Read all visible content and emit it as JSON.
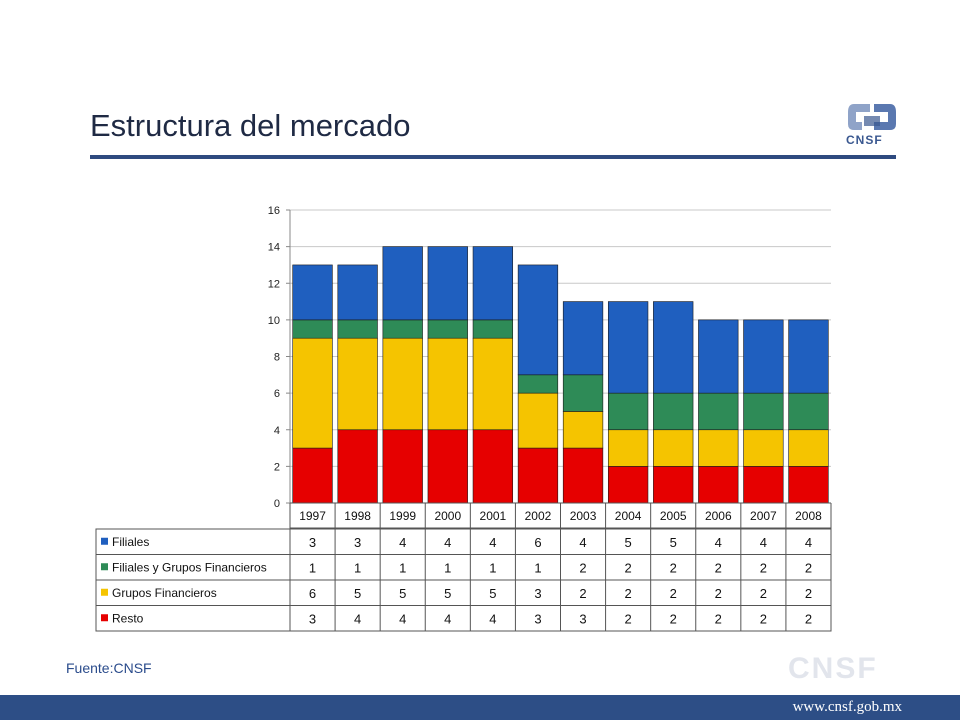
{
  "slide": {
    "title": "Estructura del mercado",
    "source": "Fuente:CNSF",
    "logo_text": "CNSF",
    "watermark": "CNSF",
    "url": "www.cnsf.gob.mx"
  },
  "colors": {
    "title_rule": "#2e4a7f",
    "footer": "#2d4e86"
  },
  "chart_data": {
    "type": "bar",
    "stacked": true,
    "categories": [
      "1997",
      "1998",
      "1999",
      "2000",
      "2001",
      "2002",
      "2003",
      "2004",
      "2005",
      "2006",
      "2007",
      "2008"
    ],
    "ylim": [
      0,
      16
    ],
    "yticks": [
      0,
      2,
      4,
      6,
      8,
      10,
      12,
      14,
      16
    ],
    "grid": true,
    "series": [
      {
        "name": "Resto",
        "color": "#e60000",
        "values": [
          3,
          4,
          4,
          4,
          4,
          3,
          3,
          2,
          2,
          2,
          2,
          2
        ]
      },
      {
        "name": "Grupos Financieros",
        "color": "#f5c400",
        "values": [
          6,
          5,
          5,
          5,
          5,
          3,
          2,
          2,
          2,
          2,
          2,
          2
        ]
      },
      {
        "name": "Filiales y Grupos Financieros",
        "color": "#2e8b57",
        "values": [
          1,
          1,
          1,
          1,
          1,
          1,
          2,
          2,
          2,
          2,
          2,
          2
        ]
      },
      {
        "name": "Filiales",
        "color": "#1f5fbf",
        "values": [
          3,
          3,
          4,
          4,
          4,
          6,
          4,
          5,
          5,
          4,
          4,
          4
        ]
      }
    ],
    "table_row_order": [
      "Filiales",
      "Filiales y Grupos Financieros",
      "Grupos Financieros",
      "Resto"
    ]
  }
}
